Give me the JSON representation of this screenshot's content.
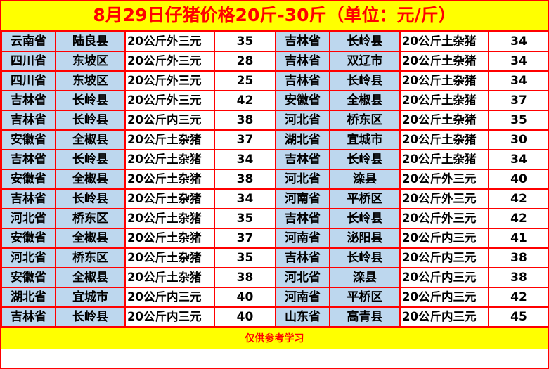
{
  "title": "8月29日仔猪价格20斤-30斤（单位：元/斤）",
  "footer": "仅供参考学习",
  "colors": {
    "header_bg": "#ffff00",
    "header_text": "#ff0000",
    "border": "#ff0000",
    "region_bg": "#bdd7ee"
  },
  "rows": [
    [
      [
        "云南省",
        "陆良县",
        "20公斤外三元",
        "35"
      ],
      [
        "吉林省",
        "长岭县",
        "20公斤土杂猪",
        "34"
      ]
    ],
    [
      [
        "四川省",
        "东坡区",
        "20公斤外三元",
        "28"
      ],
      [
        "吉林省",
        "双辽市",
        "20公斤土杂猪",
        "34"
      ]
    ],
    [
      [
        "四川省",
        "东坡区",
        "20公斤外三元",
        "25"
      ],
      [
        "吉林省",
        "长岭县",
        "20公斤土杂猪",
        "34"
      ]
    ],
    [
      [
        "吉林省",
        "长岭县",
        "20公斤外三元",
        "42"
      ],
      [
        "安徽省",
        "全椒县",
        "20公斤土杂猪",
        "37"
      ]
    ],
    [
      [
        "吉林省",
        "长岭县",
        "20公斤内三元",
        "38"
      ],
      [
        "河北省",
        "桥东区",
        "20公斤土杂猪",
        "35"
      ]
    ],
    [
      [
        "安徽省",
        "全椒县",
        "20公斤土杂猪",
        "37"
      ],
      [
        "湖北省",
        "宜城市",
        "20公斤土杂猪",
        "30"
      ]
    ],
    [
      [
        "吉林省",
        "长岭县",
        "20公斤土杂猪",
        "34"
      ],
      [
        "吉林省",
        "长岭县",
        "20公斤土杂猪",
        "34"
      ]
    ],
    [
      [
        "安徽省",
        "全椒县",
        "20公斤土杂猪",
        "38"
      ],
      [
        "河北省",
        "滦县",
        "20公斤外三元",
        "40"
      ]
    ],
    [
      [
        "吉林省",
        "长岭县",
        "20公斤土杂猪",
        "34"
      ],
      [
        "河南省",
        "平桥区",
        "20公斤外三元",
        "42"
      ]
    ],
    [
      [
        "河北省",
        "桥东区",
        "20公斤土杂猪",
        "35"
      ],
      [
        "吉林省",
        "长岭县",
        "20公斤外三元",
        "42"
      ]
    ],
    [
      [
        "安徽省",
        "全椒县",
        "20公斤土杂猪",
        "37"
      ],
      [
        "河南省",
        "泌阳县",
        "20公斤内三元",
        "41"
      ]
    ],
    [
      [
        "河北省",
        "桥东区",
        "20公斤土杂猪",
        "35"
      ],
      [
        "吉林省",
        "长岭县",
        "20公斤内三元",
        "38"
      ]
    ],
    [
      [
        "安徽省",
        "全椒县",
        "20公斤土杂猪",
        "38"
      ],
      [
        "河北省",
        "滦县",
        "20公斤内三元",
        "38"
      ]
    ],
    [
      [
        "湖北省",
        "宜城市",
        "20公斤内三元",
        "40"
      ],
      [
        "河南省",
        "平桥区",
        "20公斤内三元",
        "42"
      ]
    ],
    [
      [
        "吉林省",
        "长岭县",
        "20公斤内三元",
        "40"
      ],
      [
        "山东省",
        "高青县",
        "20公斤内三元",
        "45"
      ]
    ]
  ]
}
